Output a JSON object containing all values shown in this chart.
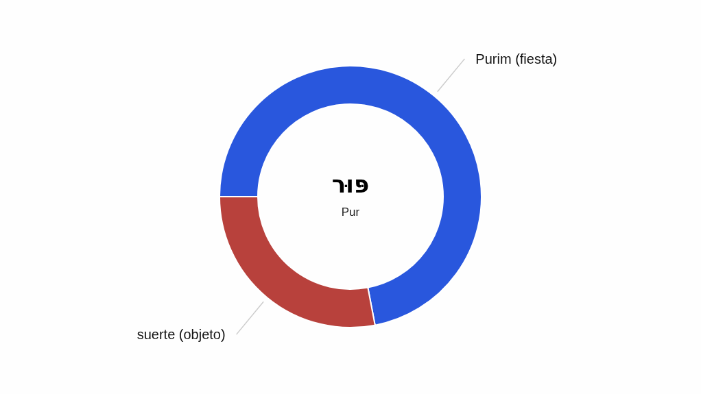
{
  "chart_data": {
    "type": "donut",
    "title": "פּוּר",
    "subtitle": "Pur",
    "categories": [
      "Purim (fiesta)",
      "suerte (objeto)"
    ],
    "values": [
      72,
      28
    ],
    "colors": [
      "#2957dd",
      "#b8413c"
    ]
  }
}
